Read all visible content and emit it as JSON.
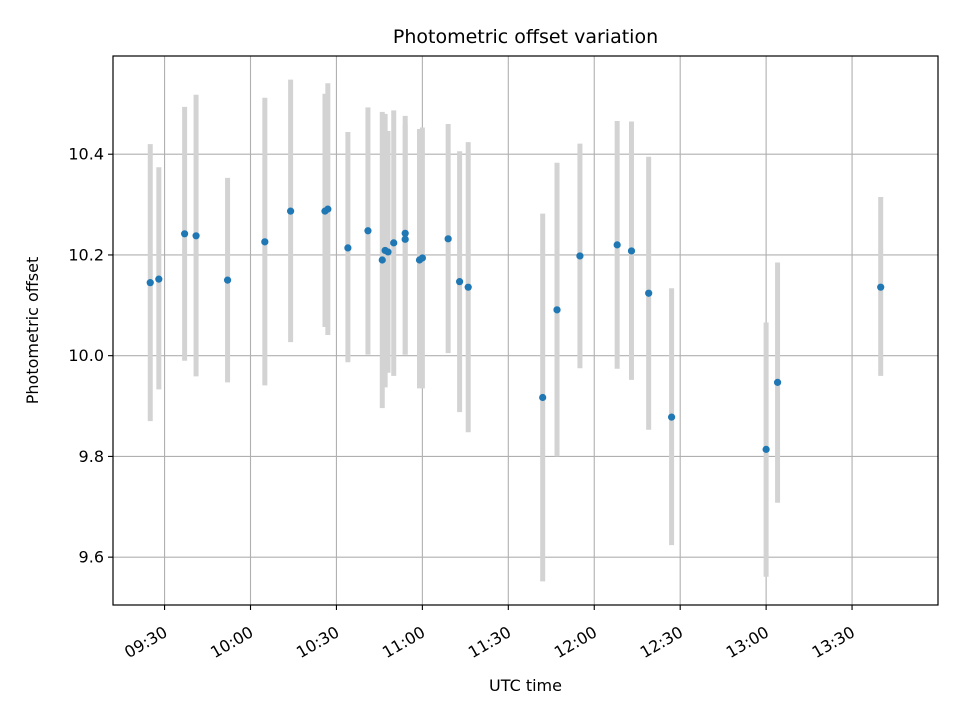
{
  "chart_data": {
    "type": "scatter",
    "title": "Photometric offset variation",
    "xlabel": "UTC time",
    "ylabel": "Photometric offset",
    "x_axis_kind": "time",
    "xlim": [
      "09:12",
      "14:00"
    ],
    "ylim": [
      9.505,
      10.595
    ],
    "grid": true,
    "x_ticks": [
      "09:30",
      "10:00",
      "10:30",
      "11:00",
      "11:30",
      "12:00",
      "12:30",
      "13:00",
      "13:30"
    ],
    "y_ticks": [
      "9.6",
      "9.8",
      "10.0",
      "10.2",
      "10.4"
    ],
    "colors": {
      "point": "#1f77b4",
      "errorbar": "#d3d3d3",
      "grid": "#b0b0b0",
      "axes": "#000000"
    },
    "series": [
      {
        "points": [
          {
            "x": "09:25",
            "y": 10.145,
            "low": 9.87,
            "high": 10.42
          },
          {
            "x": "09:28",
            "y": 10.152,
            "low": 9.933,
            "high": 10.374
          },
          {
            "x": "09:37",
            "y": 10.242,
            "low": 9.99,
            "high": 10.494
          },
          {
            "x": "09:41",
            "y": 10.238,
            "low": 9.959,
            "high": 10.518
          },
          {
            "x": "09:52",
            "y": 10.15,
            "low": 9.947,
            "high": 10.353
          },
          {
            "x": "10:05",
            "y": 10.226,
            "low": 9.941,
            "high": 10.512
          },
          {
            "x": "10:14",
            "y": 10.287,
            "low": 10.027,
            "high": 10.548
          },
          {
            "x": "10:26",
            "y": 10.287,
            "low": 10.057,
            "high": 10.52
          },
          {
            "x": "10:27",
            "y": 10.291,
            "low": 10.041,
            "high": 10.541
          },
          {
            "x": "10:34",
            "y": 10.214,
            "low": 9.987,
            "high": 10.444
          },
          {
            "x": "10:41",
            "y": 10.248,
            "low": 10.002,
            "high": 10.493
          },
          {
            "x": "10:46",
            "y": 10.19,
            "low": 9.896,
            "high": 10.484
          },
          {
            "x": "10:47",
            "y": 10.209,
            "low": 9.937,
            "high": 10.48
          },
          {
            "x": "10:48",
            "y": 10.206,
            "low": 9.966,
            "high": 10.446
          },
          {
            "x": "10:50",
            "y": 10.224,
            "low": 9.96,
            "high": 10.487
          },
          {
            "x": "10:54",
            "y": 10.243,
            "low": 10.002,
            "high": 10.476
          },
          {
            "x": "10:54",
            "y": 10.231,
            "low": 10.002,
            "high": 10.459
          },
          {
            "x": "10:59",
            "y": 10.19,
            "low": 9.935,
            "high": 10.45
          },
          {
            "x": "11:00",
            "y": 10.194,
            "low": 9.935,
            "high": 10.453
          },
          {
            "x": "11:09",
            "y": 10.232,
            "low": 10.005,
            "high": 10.46
          },
          {
            "x": "11:13",
            "y": 10.147,
            "low": 9.888,
            "high": 10.406
          },
          {
            "x": "11:16",
            "y": 10.136,
            "low": 9.848,
            "high": 10.424
          },
          {
            "x": "11:42",
            "y": 9.917,
            "low": 9.552,
            "high": 10.282
          },
          {
            "x": "11:47",
            "y": 10.091,
            "low": 9.8,
            "high": 10.383
          },
          {
            "x": "11:55",
            "y": 10.198,
            "low": 9.975,
            "high": 10.421
          },
          {
            "x": "12:08",
            "y": 10.22,
            "low": 9.974,
            "high": 10.466
          },
          {
            "x": "12:13",
            "y": 10.208,
            "low": 9.952,
            "high": 10.465
          },
          {
            "x": "12:19",
            "y": 10.124,
            "low": 9.853,
            "high": 10.395
          },
          {
            "x": "12:27",
            "y": 9.878,
            "low": 9.624,
            "high": 10.134
          },
          {
            "x": "13:00",
            "y": 9.814,
            "low": 9.561,
            "high": 10.066
          },
          {
            "x": "13:04",
            "y": 9.947,
            "low": 9.708,
            "high": 10.185
          },
          {
            "x": "13:40",
            "y": 10.136,
            "low": 9.96,
            "high": 10.315
          }
        ]
      }
    ]
  }
}
